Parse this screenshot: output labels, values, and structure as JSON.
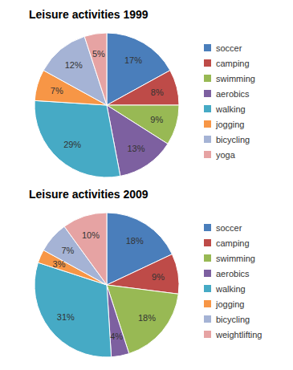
{
  "chart_data": [
    {
      "type": "pie",
      "title": "Leisure activities 1999",
      "categories": [
        "soccer",
        "camping",
        "swimming",
        "aerobics",
        "walking",
        "jogging",
        "bicycling",
        "yoga"
      ],
      "values": [
        17,
        8,
        9,
        13,
        29,
        7,
        12,
        5
      ],
      "value_labels": [
        "17%",
        "8%",
        "9%",
        "13%",
        "29%",
        "7%",
        "12%",
        "5%"
      ],
      "colors": [
        "#4a7ebb",
        "#be4b48",
        "#98b954",
        "#7d60a0",
        "#46aac5",
        "#f79646",
        "#a5b3d5",
        "#e6a3a3"
      ],
      "data_labels": true,
      "legend": "right"
    },
    {
      "type": "pie",
      "title": "Leisure activities 2009",
      "categories": [
        "soccer",
        "camping",
        "swimming",
        "aerobics",
        "walking",
        "jogging",
        "bicycling",
        "weightlifting"
      ],
      "values": [
        18,
        9,
        18,
        4,
        31,
        3,
        7,
        10
      ],
      "value_labels": [
        "18%",
        "9%",
        "18%",
        "4%",
        "31%",
        "3%",
        "7%",
        "10%"
      ],
      "colors": [
        "#4a7ebb",
        "#be4b48",
        "#98b954",
        "#7d60a0",
        "#46aac5",
        "#f79646",
        "#a5b3d5",
        "#e6a3a3"
      ],
      "data_labels": true,
      "legend": "right"
    }
  ]
}
